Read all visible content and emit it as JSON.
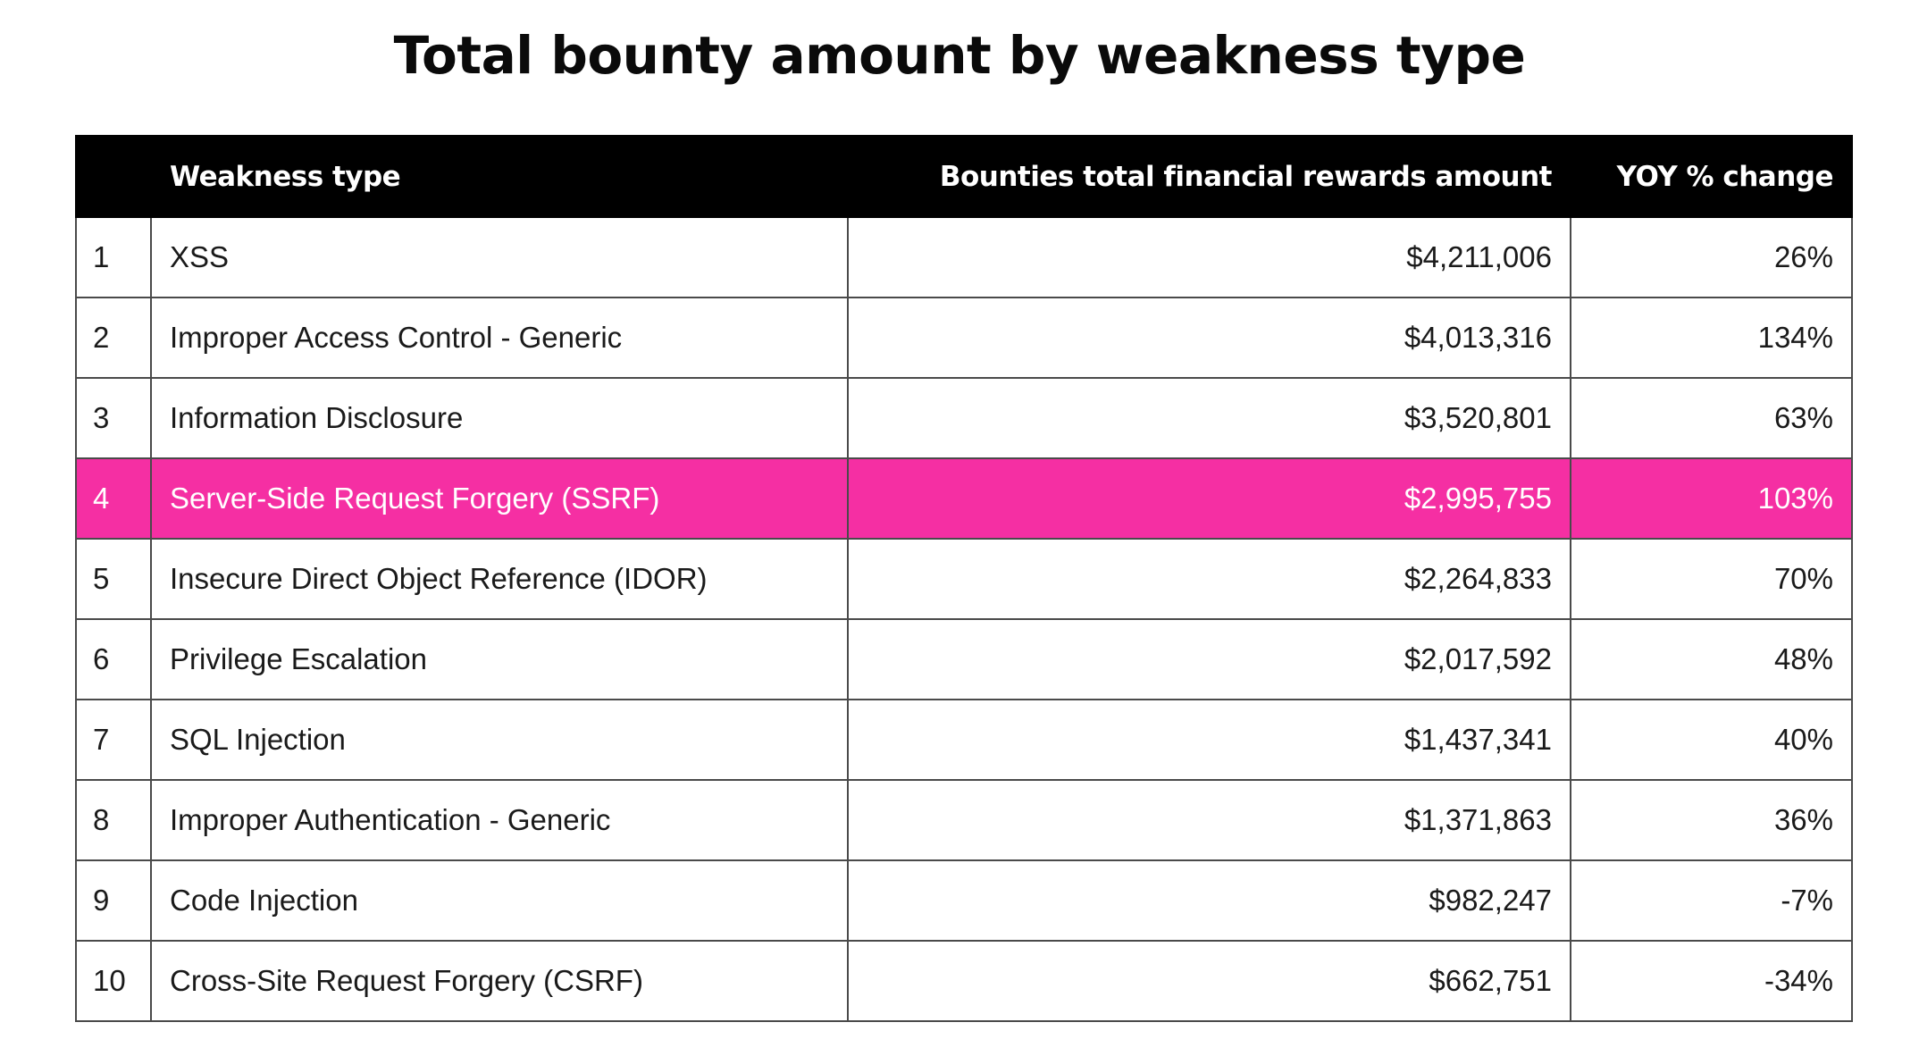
{
  "chart_data": {
    "type": "table",
    "title": "Total bounty amount by weakness type",
    "columns": [
      "",
      "Weakness type",
      "Bounties total financial rewards amount",
      "YOY % change"
    ],
    "highlight_color": "#f52fa3",
    "header_color": "#000000",
    "rows": [
      {
        "rank": "1",
        "type": "XSS",
        "amount": "$4,211,006",
        "yoy": "26%",
        "amount_value": 4211006,
        "yoy_value": 26,
        "highlight": false
      },
      {
        "rank": "2",
        "type": "Improper Access Control - Generic",
        "amount": "$4,013,316",
        "yoy": "134%",
        "amount_value": 4013316,
        "yoy_value": 134,
        "highlight": false
      },
      {
        "rank": "3",
        "type": "Information Disclosure",
        "amount": "$3,520,801",
        "yoy": "63%",
        "amount_value": 3520801,
        "yoy_value": 63,
        "highlight": false
      },
      {
        "rank": "4",
        "type": "Server-Side Request Forgery (SSRF)",
        "amount": "$2,995,755",
        "yoy": "103%",
        "amount_value": 2995755,
        "yoy_value": 103,
        "highlight": true
      },
      {
        "rank": "5",
        "type": "Insecure Direct Object Reference (IDOR)",
        "amount": "$2,264,833",
        "yoy": "70%",
        "amount_value": 2264833,
        "yoy_value": 70,
        "highlight": false
      },
      {
        "rank": "6",
        "type": "Privilege Escalation",
        "amount": "$2,017,592",
        "yoy": "48%",
        "amount_value": 2017592,
        "yoy_value": 48,
        "highlight": false
      },
      {
        "rank": "7",
        "type": "SQL Injection",
        "amount": "$1,437,341",
        "yoy": "40%",
        "amount_value": 1437341,
        "yoy_value": 40,
        "highlight": false
      },
      {
        "rank": "8",
        "type": "Improper Authentication - Generic",
        "amount": "$1,371,863",
        "yoy": "36%",
        "amount_value": 1371863,
        "yoy_value": 36,
        "highlight": false
      },
      {
        "rank": "9",
        "type": "Code Injection",
        "amount": "$982,247",
        "yoy": "-7%",
        "amount_value": 982247,
        "yoy_value": -7,
        "highlight": false
      },
      {
        "rank": "10",
        "type": "Cross-Site Request Forgery (CSRF)",
        "amount": "$662,751",
        "yoy": "-34%",
        "amount_value": 662751,
        "yoy_value": -34,
        "highlight": false
      }
    ]
  }
}
